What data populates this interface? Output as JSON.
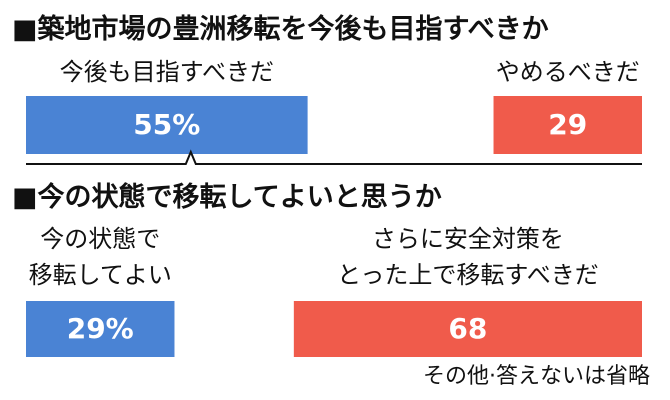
{
  "colors": {
    "blue": "#4a83d4",
    "red": "#f05b4b",
    "text": "#111111",
    "value_text": "#ffffff",
    "line": "#111111"
  },
  "chart_data": [
    {
      "type": "bar",
      "title": "■築地市場の豊洲移転を今後も目指すべきか",
      "orientation": "horizontal",
      "legend": "none",
      "grid": false,
      "categories": [
        "今後も目指すべきだ",
        "やめるべきだ"
      ],
      "values": [
        55,
        29
      ],
      "value_labels": [
        "55%",
        "29"
      ],
      "colors": [
        "#4a83d4",
        "#f05b4b"
      ],
      "xlim": [
        0,
        100
      ],
      "xlabel": "",
      "ylabel": ""
    },
    {
      "type": "bar",
      "title": "■今の状態で移転してよいと思うか",
      "orientation": "horizontal",
      "legend": "none",
      "grid": false,
      "categories": [
        [
          "今の状態で",
          "移転してよい"
        ],
        [
          "さらに安全対策を",
          "とった上で移転すべきだ"
        ]
      ],
      "values": [
        29,
        68
      ],
      "value_labels": [
        "29%",
        "68"
      ],
      "colors": [
        "#4a83d4",
        "#f05b4b"
      ],
      "xlim": [
        0,
        100
      ],
      "xlabel": "",
      "ylabel": ""
    }
  ],
  "footnote": "その他·答えないは省略"
}
